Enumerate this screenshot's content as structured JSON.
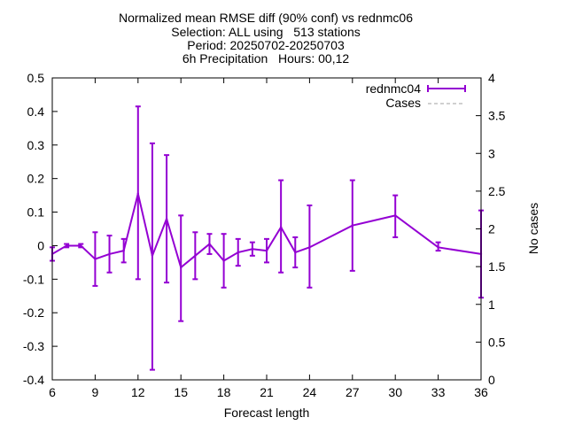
{
  "chart_data": {
    "type": "line",
    "title_lines": [
      "Normalized mean RMSE diff (90% conf) vs rednmc06",
      "Selection: ALL using   513 stations",
      "Period: 20250702-20250703",
      "6h Precipitation   Hours: 00,12"
    ],
    "xlabel": "Forecast length",
    "ylabel": "",
    "y2label": "No cases",
    "xlim": [
      6,
      36
    ],
    "ylim": [
      -0.4,
      0.5
    ],
    "y2lim": [
      0,
      4
    ],
    "xticks": [
      "6",
      "9",
      "12",
      "15",
      "18",
      "21",
      "24",
      "27",
      "30",
      "33",
      "36"
    ],
    "yticks": [
      "-0.4",
      "-0.3",
      "-0.2",
      "-0.1",
      "0",
      "0.1",
      "0.2",
      "0.3",
      "0.4",
      "0.5"
    ],
    "y2ticks": [
      "0",
      "0.5",
      "1",
      "1.5",
      "2",
      "2.5",
      "3",
      "3.5",
      "4"
    ],
    "legend_position": "top-right",
    "series": [
      {
        "name": "rednmc04",
        "color": "#9400d3",
        "style": "line-errorbars",
        "points": [
          {
            "x": 6,
            "y": -0.025,
            "lo": -0.045,
            "hi": -0.005
          },
          {
            "x": 7,
            "y": 0.0,
            "lo": -0.005,
            "hi": 0.005
          },
          {
            "x": 8,
            "y": 0.0,
            "lo": -0.005,
            "hi": 0.005
          },
          {
            "x": 9,
            "y": -0.04,
            "lo": -0.12,
            "hi": 0.04
          },
          {
            "x": 10,
            "y": -0.025,
            "lo": -0.08,
            "hi": 0.03
          },
          {
            "x": 11,
            "y": -0.015,
            "lo": -0.05,
            "hi": 0.02
          },
          {
            "x": 12,
            "y": 0.155,
            "lo": -0.1,
            "hi": 0.415
          },
          {
            "x": 13,
            "y": -0.03,
            "lo": -0.37,
            "hi": 0.305
          },
          {
            "x": 14,
            "y": 0.08,
            "lo": -0.11,
            "hi": 0.27
          },
          {
            "x": 15,
            "y": -0.065,
            "lo": -0.225,
            "hi": 0.09
          },
          {
            "x": 16,
            "y": -0.03,
            "lo": -0.1,
            "hi": 0.04
          },
          {
            "x": 17,
            "y": 0.005,
            "lo": -0.025,
            "hi": 0.035
          },
          {
            "x": 18,
            "y": -0.045,
            "lo": -0.125,
            "hi": 0.035
          },
          {
            "x": 19,
            "y": -0.02,
            "lo": -0.06,
            "hi": 0.02
          },
          {
            "x": 20,
            "y": -0.01,
            "lo": -0.03,
            "hi": 0.01
          },
          {
            "x": 21,
            "y": -0.015,
            "lo": -0.05,
            "hi": 0.02
          },
          {
            "x": 22,
            "y": 0.055,
            "lo": -0.08,
            "hi": 0.195
          },
          {
            "x": 23,
            "y": -0.02,
            "lo": -0.065,
            "hi": 0.025
          },
          {
            "x": 24,
            "y": -0.005,
            "lo": -0.125,
            "hi": 0.12
          },
          {
            "x": 27,
            "y": 0.06,
            "lo": -0.075,
            "hi": 0.195
          },
          {
            "x": 30,
            "y": 0.09,
            "lo": 0.025,
            "hi": 0.15
          },
          {
            "x": 33,
            "y": -0.005,
            "lo": -0.015,
            "hi": 0.01
          },
          {
            "x": 36,
            "y": -0.025,
            "lo": -0.155,
            "hi": 0.105
          }
        ]
      },
      {
        "name": "Cases",
        "color": "#a0a0a0",
        "style": "dashed",
        "axis": "y2",
        "points": [
          {
            "x": 6,
            "y": 4
          },
          {
            "x": 36,
            "y": 4
          }
        ]
      }
    ]
  }
}
